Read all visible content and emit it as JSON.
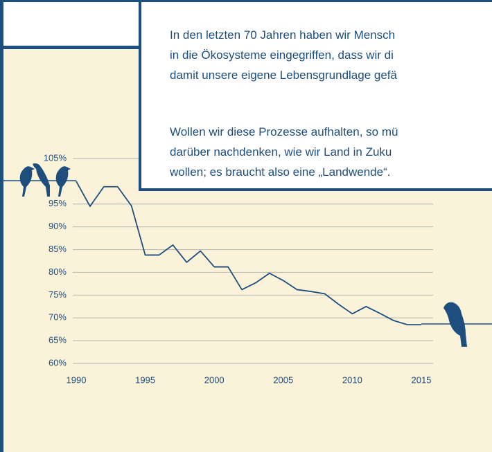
{
  "chart_data": {
    "type": "line",
    "x": [
      1990,
      1991,
      1992,
      1993,
      1994,
      1995,
      1996,
      1997,
      1998,
      1999,
      2000,
      2001,
      2002,
      2003,
      2004,
      2005,
      2006,
      2007,
      2008,
      2009,
      2010,
      2011,
      2012,
      2013,
      2014,
      2015
    ],
    "values": [
      100,
      94.5,
      98.8,
      98.8,
      94.6,
      83.8,
      83.8,
      86,
      82.2,
      84.7,
      81.2,
      81.2,
      76.2,
      77.7,
      79.8,
      78.2,
      76.2,
      75.8,
      75.3,
      73,
      70.9,
      72.5,
      71,
      69.4,
      68.5,
      68.5
    ],
    "color": "#1d4e7d",
    "xlim": [
      1990,
      2015
    ],
    "ylim": [
      60,
      105
    ],
    "xticks": [
      1990,
      1995,
      2000,
      2005,
      2010,
      2015
    ],
    "yticks": [
      {
        "value": 60,
        "label": "60%"
      },
      {
        "value": 65,
        "label": "65%"
      },
      {
        "value": 70,
        "label": "70%"
      },
      {
        "value": 75,
        "label": "75%"
      },
      {
        "value": 80,
        "label": "80%"
      },
      {
        "value": 85,
        "label": "85%"
      },
      {
        "value": 90,
        "label": "90%"
      },
      {
        "value": 95,
        "label": "95%"
      },
      {
        "value": 105,
        "label": "105%"
      }
    ],
    "grid": true
  },
  "textbox": {
    "lines": [
      "In den letzten 70 Jahren haben wir Mensch",
      "in die Ökosysteme eingegriffen, dass wir di",
      "damit unsere eigene Lebensgrundlage gefä",
      "Wollen wir diese Prozesse aufhalten, so mü",
      "darüber nachdenken, wie wir Land in Zuku",
      "wollen; es braucht also eine „Landwende“."
    ]
  }
}
